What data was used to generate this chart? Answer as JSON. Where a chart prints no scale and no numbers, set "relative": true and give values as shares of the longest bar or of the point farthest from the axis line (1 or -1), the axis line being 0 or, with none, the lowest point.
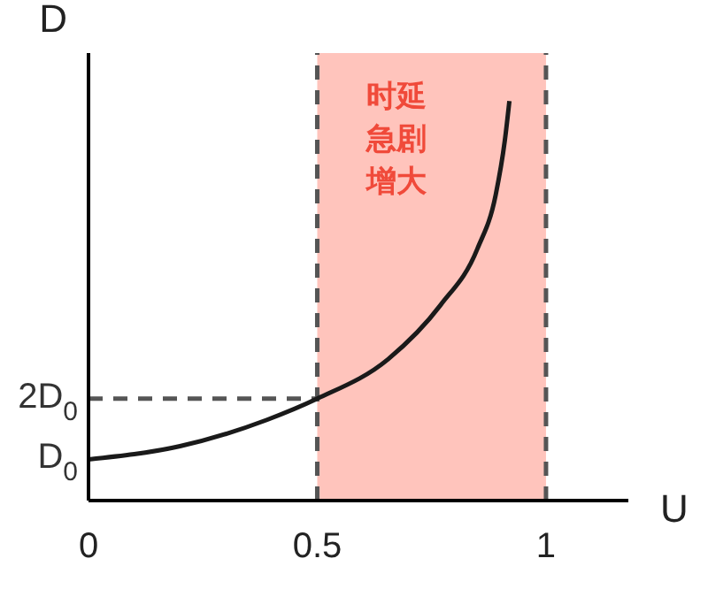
{
  "chart_data": {
    "type": "line",
    "xlabel": "U",
    "ylabel": "D",
    "relative": true,
    "series": [
      {
        "color": "#1a1a1a",
        "x": [
          0,
          0.2,
          0.39,
          0.5,
          0.655,
          0.77,
          0.85,
          0.89,
          0.91,
          0.92
        ],
        "values": [
          0.103,
          0.136,
          0.202,
          0.255,
          0.354,
          0.49,
          0.63,
          0.765,
          0.901,
          1
        ]
      }
    ],
    "xlim": [
      0,
      1.18
    ],
    "xticks": [
      0,
      0.5,
      1
    ],
    "annotations": [
      {
        "text": "D$_{0}$",
        "x": 0,
        "y": 0.103
      },
      {
        "text": "2D$_{0}$",
        "x": 0,
        "y": 0.255
      }
    ],
    "bands": [
      {
        "axis": "x",
        "from": 0.5,
        "to": 1,
        "label": "时延急剧增大",
        "color": "#ffc4bc"
      }
    ],
    "ref_lines": [
      {
        "axis": "x",
        "value": 0.5,
        "line_style": "dashed",
        "color": "#555555"
      },
      {
        "axis": "x",
        "value": 1,
        "line_style": "dashed",
        "color": "#555555"
      },
      {
        "axis": "y",
        "value": 0.255,
        "line_style": "dashed",
        "color": "#555555"
      }
    ],
    "grid": false,
    "marker": "none",
    "line_style": "solid"
  }
}
